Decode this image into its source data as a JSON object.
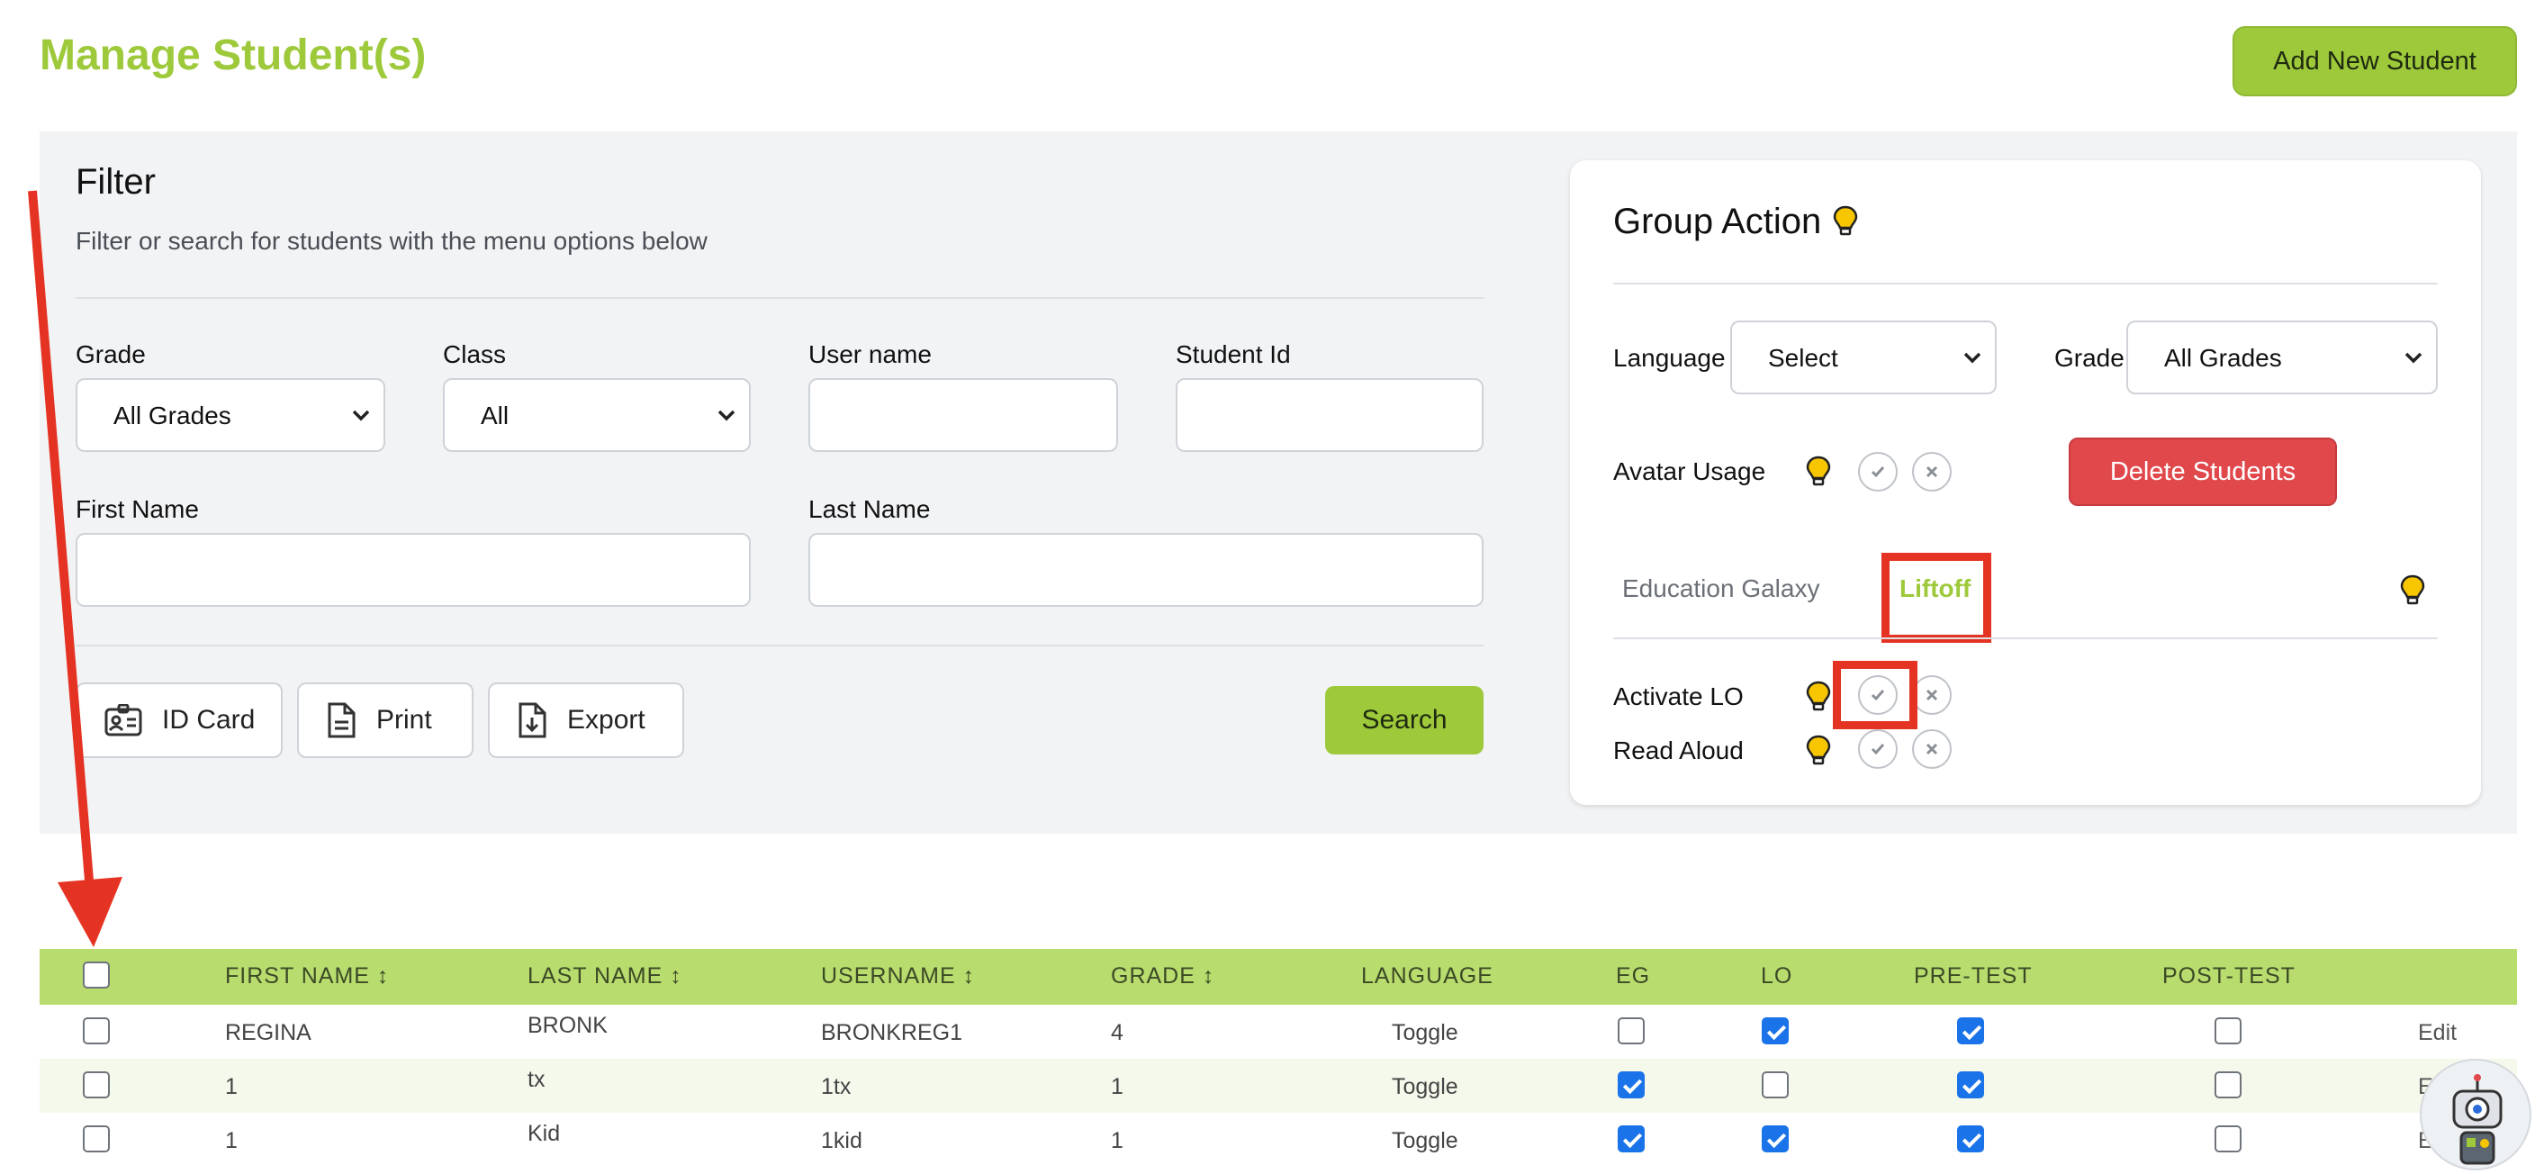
{
  "page": {
    "title": "Manage Student(s)",
    "add_button": "Add New Student"
  },
  "filter": {
    "title": "Filter",
    "subtitle": "Filter or search for students with the menu options below",
    "grade": {
      "label": "Grade",
      "value": "All Grades"
    },
    "class": {
      "label": "Class",
      "value": "All"
    },
    "username": {
      "label": "User name",
      "value": ""
    },
    "student_id": {
      "label": "Student Id",
      "value": ""
    },
    "first_name": {
      "label": "First Name",
      "value": ""
    },
    "last_name": {
      "label": "Last Name",
      "value": ""
    },
    "buttons": {
      "id_card": "ID Card",
      "print": "Print",
      "export": "Export",
      "search": "Search"
    }
  },
  "group_action": {
    "title": "Group Action",
    "language": {
      "label": "Language",
      "value": "Select"
    },
    "grade": {
      "label": "Grade",
      "value": "All Grades"
    },
    "avatar_usage": "Avatar Usage",
    "delete_button": "Delete Students",
    "tabs": {
      "eg": "Education Galaxy",
      "lo": "Liftoff"
    },
    "activate_lo": "Activate LO",
    "read_aloud": "Read Aloud"
  },
  "table": {
    "headers": {
      "first_name": "FIRST NAME ↕",
      "last_name": "LAST NAME ↕",
      "username": "USERNAME ↕",
      "grade": "GRADE ↕",
      "language": "LANGUAGE",
      "eg": "EG",
      "lo": "LO",
      "pre_test": "PRE-TEST",
      "post_test": "POST-TEST"
    },
    "rows": [
      {
        "first": "REGINA",
        "last": "BRONK",
        "username": "BRONKREG1",
        "grade": "4",
        "language": "Toggle",
        "eg": false,
        "lo": true,
        "pre": true,
        "post": false,
        "edit": "Edit"
      },
      {
        "first": "1",
        "last": "tx",
        "username": "1tx",
        "grade": "1",
        "language": "Toggle",
        "eg": true,
        "lo": false,
        "pre": true,
        "post": false,
        "edit": "Edit"
      },
      {
        "first": "1",
        "last": "Kid",
        "username": "1kid",
        "grade": "1",
        "language": "Toggle",
        "eg": true,
        "lo": true,
        "pre": true,
        "post": false,
        "edit": "Edit"
      }
    ]
  },
  "colors": {
    "accent": "#9dc93b",
    "danger": "#e0484c",
    "highlight": "#e53323",
    "checkbox": "#1a73e8"
  }
}
